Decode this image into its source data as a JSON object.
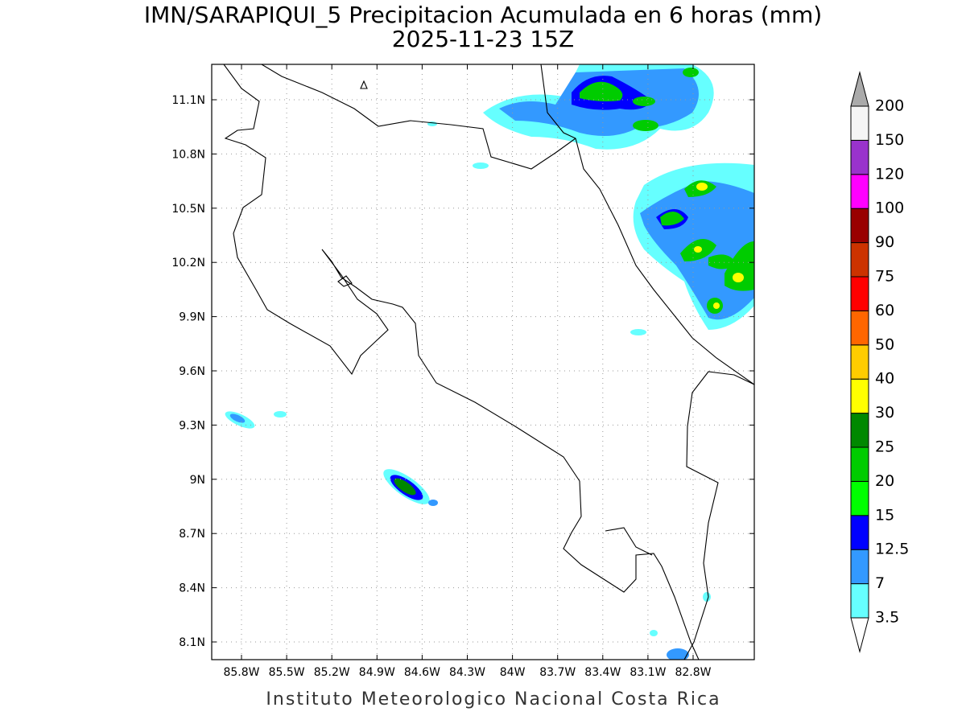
{
  "title": "IMN/SARAPIQUI_5 Precipitacion Acumulada en 6 horas (mm)",
  "subtitle": "2025-11-23 15Z",
  "map": {
    "lon_ticks": [
      "85.8W",
      "85.5W",
      "85.2W",
      "84.9W",
      "84.6W",
      "84.3W",
      "84W",
      "83.7W",
      "83.4W",
      "83.1W",
      "82.8W"
    ],
    "lat_ticks": [
      "11.1N",
      "10.8N",
      "10.5N",
      "10.2N",
      "9.9N",
      "9.6N",
      "9.3N",
      "9N",
      "8.7N",
      "8.4N",
      "8.1N"
    ]
  },
  "colorbar": {
    "levels": [
      "3.5",
      "7",
      "12.5",
      "15",
      "20",
      "25",
      "30",
      "40",
      "50",
      "60",
      "75",
      "90",
      "100",
      "120",
      "150",
      "200"
    ],
    "colors": [
      "#66ffff",
      "#3399ff",
      "#0000ff",
      "#00ff00",
      "#00cc00",
      "#008800",
      "#ffff00",
      "#ffcc00",
      "#ff6600",
      "#ff0000",
      "#cc3300",
      "#990000",
      "#ff00ff",
      "#9933cc",
      "#f5f5f5"
    ]
  },
  "footer": "Instituto Meteorologico Nacional Costa Rica"
}
